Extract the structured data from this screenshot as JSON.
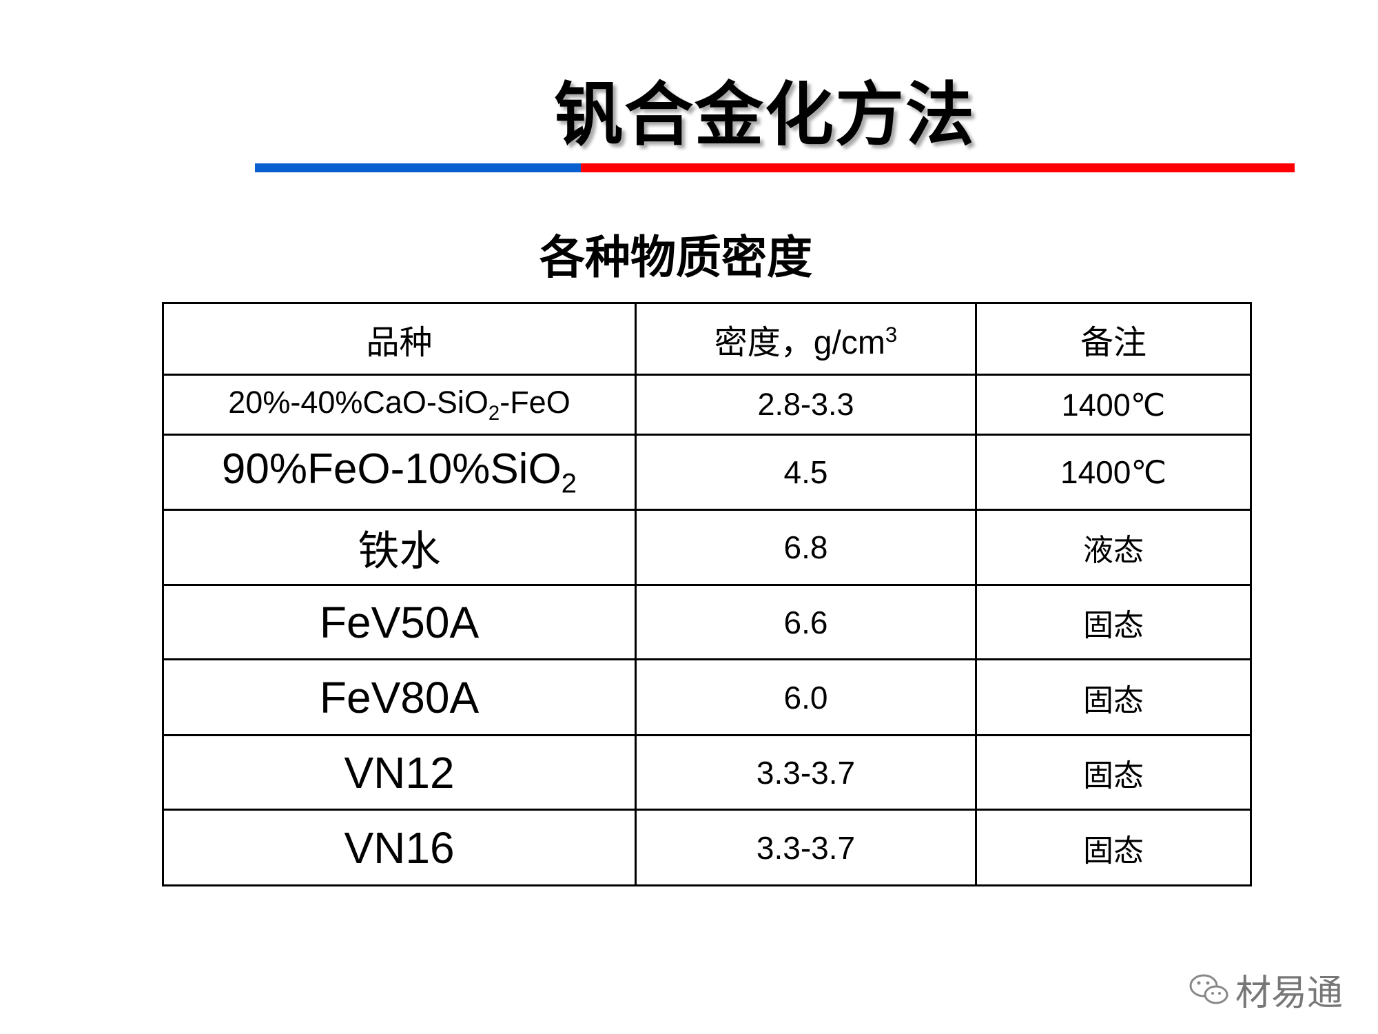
{
  "header": {
    "title": "钒合金化方法",
    "subtitle": "各种物质密度"
  },
  "table": {
    "header": [
      [
        "品种"
      ],
      [
        "密度，g/cm",
        {
          "sup": "3"
        }
      ],
      [
        "备注"
      ]
    ],
    "rows": [
      [
        [
          "20%-40%CaO-SiO",
          {
            "sub": "2"
          },
          "-FeO"
        ],
        [
          "2.8-3.3"
        ],
        [
          "1400℃"
        ]
      ],
      [
        [
          "90%FeO-10%SiO",
          {
            "sub": "2"
          }
        ],
        [
          "4.5"
        ],
        [
          "1400℃"
        ]
      ],
      [
        [
          "铁水"
        ],
        [
          "6.8"
        ],
        [
          "液态"
        ]
      ],
      [
        [
          "FeV50A"
        ],
        [
          "6.6"
        ],
        [
          "固态"
        ]
      ],
      [
        [
          "FeV80A"
        ],
        [
          "6.0"
        ],
        [
          "固态"
        ]
      ],
      [
        [
          "VN12"
        ],
        [
          "3.3-3.7"
        ],
        [
          "固态"
        ]
      ],
      [
        [
          "VN16"
        ],
        [
          "3.3-3.7"
        ],
        [
          "固态"
        ]
      ]
    ]
  },
  "watermark": "材易通"
}
